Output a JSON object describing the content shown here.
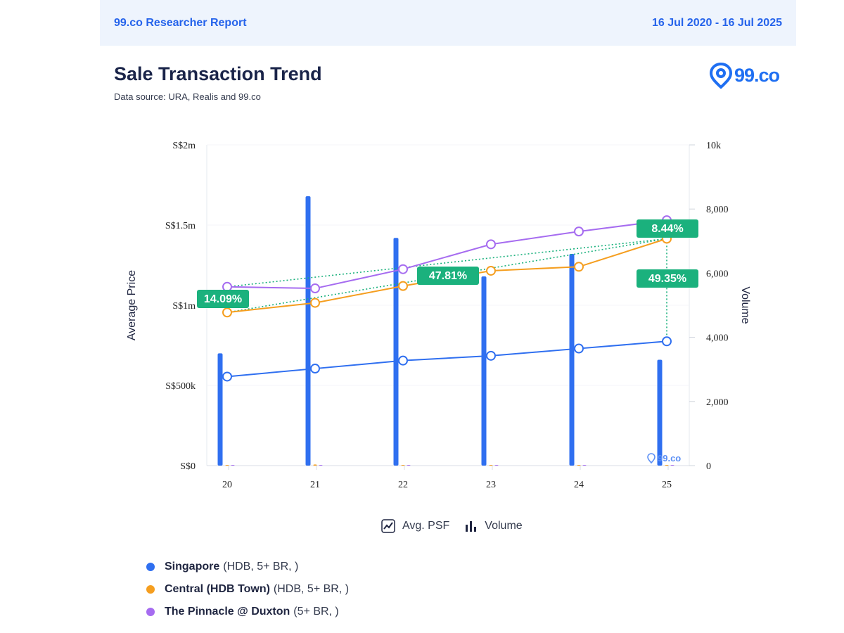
{
  "header": {
    "report_label": "99.co Researcher Report",
    "date_range": "16 Jul 2020 - 16 Jul 2025"
  },
  "title": "Sale Transaction Trend",
  "subtitle": "Data source: URA, Realis and 99.co",
  "logo": {
    "text": "99.co",
    "color": "#1f6ff2"
  },
  "watermark": "99.co",
  "chart_legend": {
    "psf_label": "Avg. PSF",
    "volume_label": "Volume"
  },
  "series_legend": [
    {
      "name": "Singapore",
      "detail": "(HDB, 5+ BR, )",
      "color": "#2f6ff0"
    },
    {
      "name": "Central (HDB Town)",
      "detail": "(HDB, 5+ BR, )",
      "color": "#f59e1f"
    },
    {
      "name": "The Pinnacle @ Duxton",
      "detail": "(5+ BR, )",
      "color": "#a66cf0"
    }
  ],
  "chart_data": {
    "type": "line",
    "title": "Sale Transaction Trend",
    "categories": [
      "20",
      "21",
      "22",
      "23",
      "24",
      "25"
    ],
    "ylabel": "Average Price",
    "y2label": "Volume",
    "ylim": [
      0,
      2000000
    ],
    "y2lim": [
      0,
      10000
    ],
    "y_ticks": [
      {
        "value": 0,
        "label": "S$0"
      },
      {
        "value": 500000,
        "label": "S$500k"
      },
      {
        "value": 1000000,
        "label": "S$1m"
      },
      {
        "value": 1500000,
        "label": "S$1.5m"
      },
      {
        "value": 2000000,
        "label": "S$2m"
      }
    ],
    "y2_ticks": [
      {
        "value": 0,
        "label": "0"
      },
      {
        "value": 2000,
        "label": "2,000"
      },
      {
        "value": 4000,
        "label": "4,000"
      },
      {
        "value": 6000,
        "label": "6,000"
      },
      {
        "value": 8000,
        "label": "8,000"
      },
      {
        "value": 10000,
        "label": "10k"
      }
    ],
    "series": [
      {
        "name": "Singapore",
        "color": "#2f6ff0",
        "values": [
          555000,
          605000,
          655000,
          685000,
          730000,
          775000
        ],
        "volume": [
          3500,
          8400,
          7100,
          5900,
          6600,
          3300
        ]
      },
      {
        "name": "Central (HDB Town)",
        "color": "#f59e1f",
        "values": [
          955000,
          1015000,
          1120000,
          1215000,
          1240000,
          1415000
        ],
        "volume": [
          15,
          35,
          15,
          10,
          10,
          10
        ]
      },
      {
        "name": "The Pinnacle @ Duxton",
        "color": "#a66cf0",
        "values": [
          1115000,
          1105000,
          1225000,
          1380000,
          1460000,
          1530000
        ],
        "volume": [
          12,
          12,
          10,
          8,
          8,
          8
        ]
      }
    ],
    "annotations": [
      {
        "label": "14.09%",
        "series": "Central (HDB Town)",
        "kind": "trend"
      },
      {
        "label": "47.81%",
        "series": "Central (HDB Town)",
        "kind": "trend"
      },
      {
        "label": "8.44%",
        "series": "The Pinnacle @ Duxton",
        "kind": "trend"
      },
      {
        "label": "49.35%",
        "series": "Singapore",
        "kind": "gap"
      }
    ]
  }
}
